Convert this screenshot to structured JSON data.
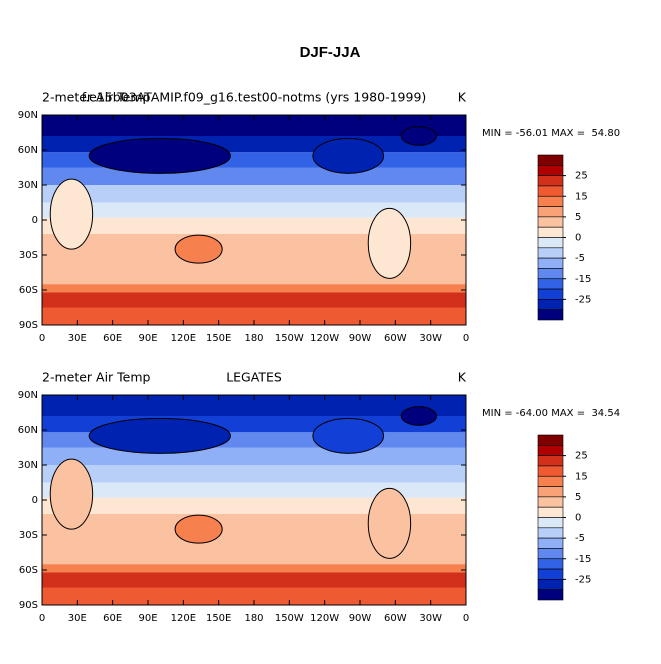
{
  "title": "DJF-JJA",
  "units": "K",
  "xticks": [
    0,
    {
      "value": 30,
      "label": "30E"
    },
    {
      "value": 60,
      "label": "60E"
    },
    {
      "value": 90,
      "label": "90E"
    },
    {
      "value": 120,
      "label": "120E"
    },
    {
      "value": 150,
      "label": "150E"
    },
    180,
    {
      "value": 210,
      "label": "150W"
    },
    {
      "value": 240,
      "label": "120W"
    },
    {
      "value": 270,
      "label": "90W"
    },
    {
      "value": 300,
      "label": "60W"
    },
    {
      "value": 330,
      "label": "30W"
    },
    {
      "value": 360,
      "label": "0"
    }
  ],
  "yticks": [
    {
      "value": 90,
      "label": "90N"
    },
    {
      "value": 60,
      "label": "60N"
    },
    {
      "value": 30,
      "label": "30N"
    },
    0,
    {
      "value": -30,
      "label": "30S"
    },
    {
      "value": -60,
      "label": "60S"
    },
    {
      "value": -90,
      "label": "90S"
    }
  ],
  "xlim": [
    0,
    360
  ],
  "ylim": [
    -90,
    90
  ],
  "colorbar": {
    "ticks": [
      25,
      15,
      5,
      0,
      -5,
      -15,
      -25
    ],
    "colors": [
      "#800000",
      "#b00000",
      "#d2301a",
      "#ee5a32",
      "#f7804f",
      "#f9a177",
      "#fbc2a2",
      "#fde6d2",
      "#dbe8f8",
      "#b8d0f8",
      "#8fb0f6",
      "#6088ee",
      "#3262e6",
      "#1240d6",
      "#0022b0",
      "#00007e"
    ]
  },
  "panels": [
    {
      "left_title": "2-meter Air Temp",
      "center_title": "f.e15b03ATAMIP.f09_g16.test00-notms (yrs 1980-1999)",
      "stats": "MIN = -56.01 MAX =  54.80"
    },
    {
      "left_title": "2-meter Air Temp",
      "center_title": "LEGATES",
      "stats": "MIN = -64.00 MAX =  34.54"
    }
  ]
}
